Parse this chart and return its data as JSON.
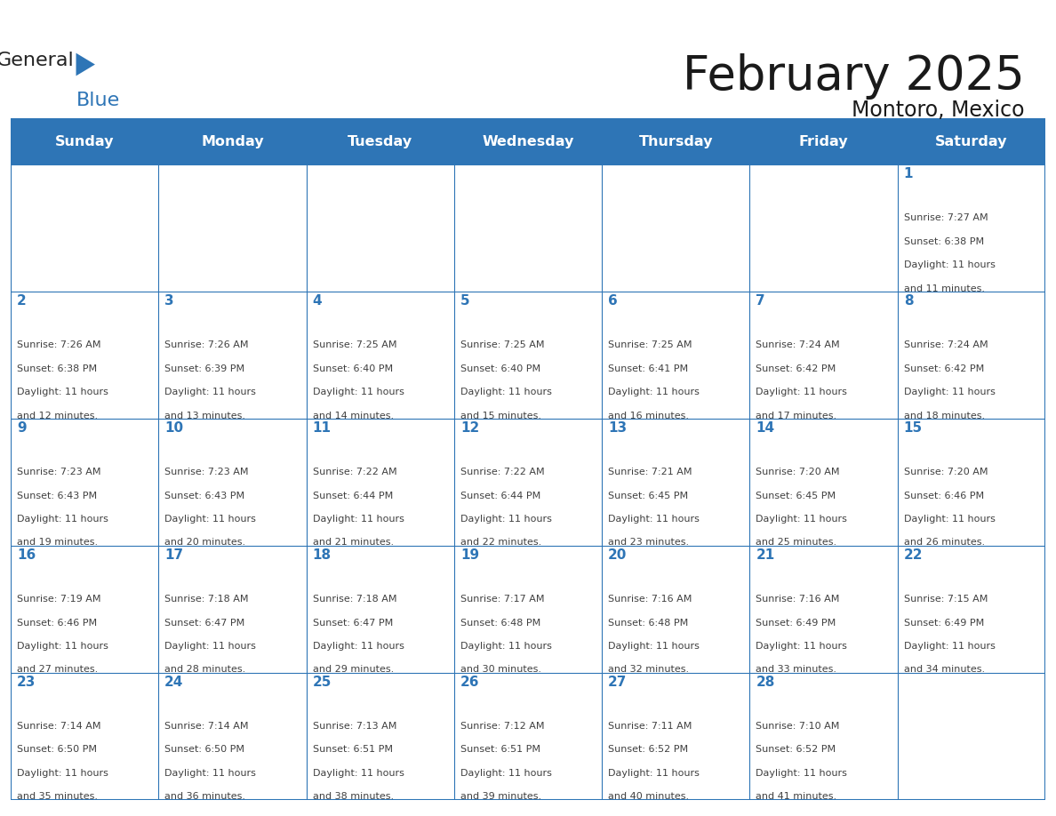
{
  "title": "February 2025",
  "subtitle": "Montoro, Mexico",
  "days_of_week": [
    "Sunday",
    "Monday",
    "Tuesday",
    "Wednesday",
    "Thursday",
    "Friday",
    "Saturday"
  ],
  "header_bg": "#2E75B6",
  "header_text_color": "#FFFFFF",
  "cell_bg_white": "#FFFFFF",
  "grid_line_color": "#2E75B6",
  "day_number_color": "#2E75B6",
  "info_text_color": "#404040",
  "title_color": "#1a1a1a",
  "logo_general_color": "#222222",
  "logo_blue_color": "#2E75B6",
  "calendar": [
    [
      null,
      null,
      null,
      null,
      null,
      null,
      {
        "day": 1,
        "sunrise": "7:27 AM",
        "sunset": "6:38 PM",
        "daylight": "11 hours and 11 minutes."
      }
    ],
    [
      {
        "day": 2,
        "sunrise": "7:26 AM",
        "sunset": "6:38 PM",
        "daylight": "11 hours and 12 minutes."
      },
      {
        "day": 3,
        "sunrise": "7:26 AM",
        "sunset": "6:39 PM",
        "daylight": "11 hours and 13 minutes."
      },
      {
        "day": 4,
        "sunrise": "7:25 AM",
        "sunset": "6:40 PM",
        "daylight": "11 hours and 14 minutes."
      },
      {
        "day": 5,
        "sunrise": "7:25 AM",
        "sunset": "6:40 PM",
        "daylight": "11 hours and 15 minutes."
      },
      {
        "day": 6,
        "sunrise": "7:25 AM",
        "sunset": "6:41 PM",
        "daylight": "11 hours and 16 minutes."
      },
      {
        "day": 7,
        "sunrise": "7:24 AM",
        "sunset": "6:42 PM",
        "daylight": "11 hours and 17 minutes."
      },
      {
        "day": 8,
        "sunrise": "7:24 AM",
        "sunset": "6:42 PM",
        "daylight": "11 hours and 18 minutes."
      }
    ],
    [
      {
        "day": 9,
        "sunrise": "7:23 AM",
        "sunset": "6:43 PM",
        "daylight": "11 hours and 19 minutes."
      },
      {
        "day": 10,
        "sunrise": "7:23 AM",
        "sunset": "6:43 PM",
        "daylight": "11 hours and 20 minutes."
      },
      {
        "day": 11,
        "sunrise": "7:22 AM",
        "sunset": "6:44 PM",
        "daylight": "11 hours and 21 minutes."
      },
      {
        "day": 12,
        "sunrise": "7:22 AM",
        "sunset": "6:44 PM",
        "daylight": "11 hours and 22 minutes."
      },
      {
        "day": 13,
        "sunrise": "7:21 AM",
        "sunset": "6:45 PM",
        "daylight": "11 hours and 23 minutes."
      },
      {
        "day": 14,
        "sunrise": "7:20 AM",
        "sunset": "6:45 PM",
        "daylight": "11 hours and 25 minutes."
      },
      {
        "day": 15,
        "sunrise": "7:20 AM",
        "sunset": "6:46 PM",
        "daylight": "11 hours and 26 minutes."
      }
    ],
    [
      {
        "day": 16,
        "sunrise": "7:19 AM",
        "sunset": "6:46 PM",
        "daylight": "11 hours and 27 minutes."
      },
      {
        "day": 17,
        "sunrise": "7:18 AM",
        "sunset": "6:47 PM",
        "daylight": "11 hours and 28 minutes."
      },
      {
        "day": 18,
        "sunrise": "7:18 AM",
        "sunset": "6:47 PM",
        "daylight": "11 hours and 29 minutes."
      },
      {
        "day": 19,
        "sunrise": "7:17 AM",
        "sunset": "6:48 PM",
        "daylight": "11 hours and 30 minutes."
      },
      {
        "day": 20,
        "sunrise": "7:16 AM",
        "sunset": "6:48 PM",
        "daylight": "11 hours and 32 minutes."
      },
      {
        "day": 21,
        "sunrise": "7:16 AM",
        "sunset": "6:49 PM",
        "daylight": "11 hours and 33 minutes."
      },
      {
        "day": 22,
        "sunrise": "7:15 AM",
        "sunset": "6:49 PM",
        "daylight": "11 hours and 34 minutes."
      }
    ],
    [
      {
        "day": 23,
        "sunrise": "7:14 AM",
        "sunset": "6:50 PM",
        "daylight": "11 hours and 35 minutes."
      },
      {
        "day": 24,
        "sunrise": "7:14 AM",
        "sunset": "6:50 PM",
        "daylight": "11 hours and 36 minutes."
      },
      {
        "day": 25,
        "sunrise": "7:13 AM",
        "sunset": "6:51 PM",
        "daylight": "11 hours and 38 minutes."
      },
      {
        "day": 26,
        "sunrise": "7:12 AM",
        "sunset": "6:51 PM",
        "daylight": "11 hours and 39 minutes."
      },
      {
        "day": 27,
        "sunrise": "7:11 AM",
        "sunset": "6:52 PM",
        "daylight": "11 hours and 40 minutes."
      },
      {
        "day": 28,
        "sunrise": "7:10 AM",
        "sunset": "6:52 PM",
        "daylight": "11 hours and 41 minutes."
      },
      null
    ]
  ],
  "figsize": [
    11.88,
    9.18
  ],
  "dpi": 100
}
